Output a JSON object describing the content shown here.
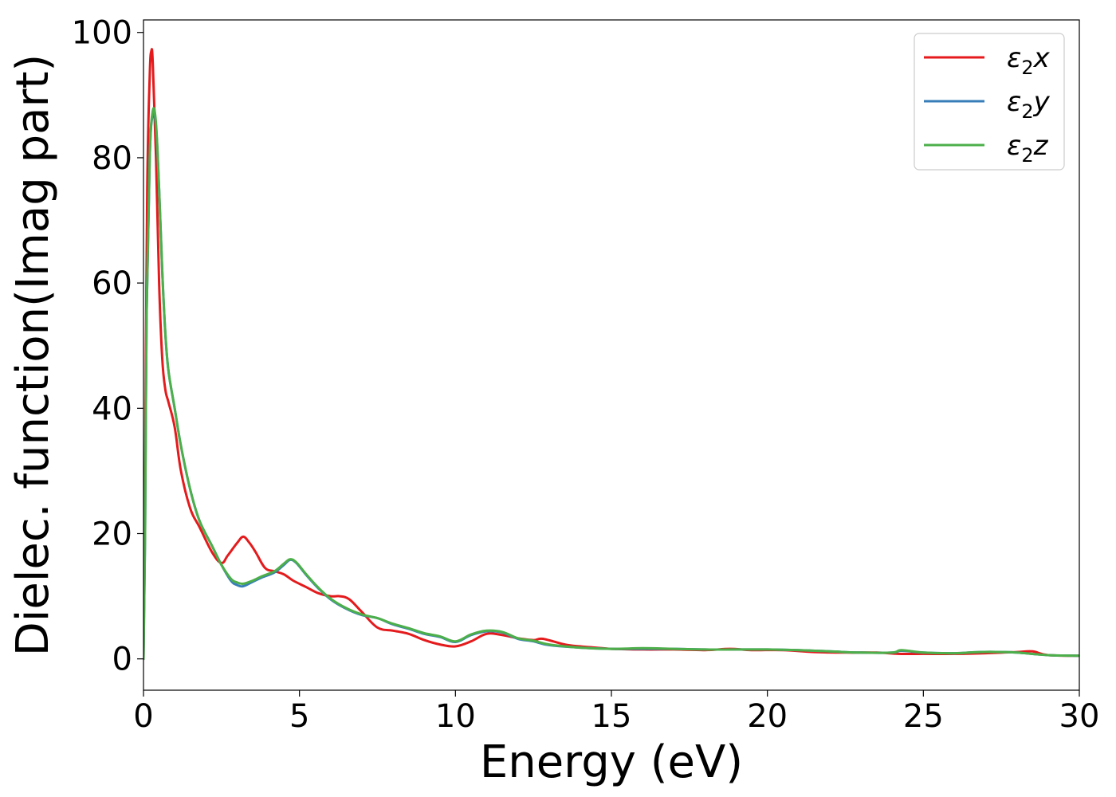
{
  "chart_data": {
    "type": "line",
    "title": "",
    "xlabel": "Energy (eV)",
    "ylabel": "Dielec. function(Imag part)",
    "xlim": [
      0,
      30
    ],
    "ylim": [
      -5,
      102
    ],
    "xticks": [
      0,
      5,
      10,
      15,
      20,
      25,
      30
    ],
    "yticks": [
      0,
      20,
      40,
      60,
      80,
      100
    ],
    "grid": false,
    "legend_position": "top-right",
    "series": [
      {
        "name": "ε2x",
        "legend": {
          "base": "ε",
          "sub": "2",
          "suffix": "x"
        },
        "color": "#e41a1c",
        "x": [
          0,
          0.05,
          0.12,
          0.2,
          0.25,
          0.3,
          0.4,
          0.5,
          0.6,
          0.7,
          0.8,
          1.0,
          1.2,
          1.5,
          1.8,
          2.2,
          2.5,
          2.7,
          3.0,
          3.2,
          3.4,
          3.6,
          3.9,
          4.2,
          4.5,
          4.8,
          5.2,
          5.6,
          6.0,
          6.3,
          6.6,
          7.0,
          7.5,
          8.0,
          8.5,
          9.0,
          9.5,
          10.0,
          10.5,
          11.0,
          11.5,
          12.0,
          12.5,
          12.8,
          13.5,
          14.0,
          14.5,
          15.0,
          16.0,
          17.0,
          18.0,
          18.8,
          19.5,
          20.5,
          21.5,
          22.5,
          23.5,
          24.2,
          25.0,
          26.0,
          27.0,
          28.0,
          28.5,
          29.0,
          30.0
        ],
        "values": [
          0,
          30,
          75,
          93,
          97,
          95,
          80,
          60,
          48,
          43,
          41,
          37,
          30,
          24,
          21,
          17,
          15.3,
          16.5,
          18.5,
          19.5,
          18.5,
          17,
          14.5,
          14,
          13.5,
          12.5,
          11.5,
          10.5,
          10,
          10,
          9.5,
          7.5,
          5,
          4.5,
          4,
          3,
          2.3,
          2,
          2.8,
          4,
          3.8,
          3.3,
          3,
          3.2,
          2.3,
          2,
          1.8,
          1.6,
          1.5,
          1.5,
          1.4,
          1.6,
          1.4,
          1.4,
          1.1,
          1,
          1,
          0.8,
          0.8,
          0.8,
          0.9,
          1.1,
          1.2,
          0.6,
          0.5
        ]
      },
      {
        "name": "ε2y",
        "legend": {
          "base": "ε",
          "sub": "2",
          "suffix": "y"
        },
        "color": "#377eb8",
        "x": [
          0,
          0.05,
          0.1,
          0.2,
          0.3,
          0.4,
          0.5,
          0.6,
          0.7,
          0.8,
          1.0,
          1.2,
          1.5,
          1.8,
          2.2,
          2.5,
          2.8,
          3.0,
          3.2,
          3.5,
          3.8,
          4.2,
          4.5,
          4.7,
          4.9,
          5.2,
          5.6,
          6.0,
          6.5,
          7.0,
          7.5,
          8.0,
          8.5,
          9.0,
          9.5,
          10.0,
          10.5,
          11.0,
          11.5,
          12.0,
          12.5,
          13.0,
          14.0,
          15.0,
          16.0,
          17.0,
          18.0,
          19.0,
          20.0,
          21.0,
          22.0,
          23.0,
          24.0,
          24.3,
          25.0,
          26.0,
          26.8,
          27.5,
          28.0,
          29.0,
          30.0
        ],
        "values": [
          0,
          20,
          55,
          80,
          87,
          85,
          75,
          62,
          52,
          46,
          40,
          34,
          27,
          22,
          18,
          15,
          12.5,
          11.8,
          11.6,
          12.3,
          13,
          13.8,
          15,
          15.8,
          15.3,
          13.5,
          11.3,
          9.5,
          8,
          7,
          6.5,
          5.5,
          4.8,
          4,
          3.5,
          2.7,
          3.8,
          4.4,
          4.2,
          3.2,
          2.8,
          2.2,
          1.8,
          1.6,
          1.6,
          1.6,
          1.5,
          1.5,
          1.5,
          1.4,
          1.2,
          1,
          1,
          1.3,
          1,
          0.9,
          1.1,
          1.1,
          1,
          0.6,
          0.5
        ]
      },
      {
        "name": "ε2z",
        "legend": {
          "base": "ε",
          "sub": "2",
          "suffix": "z"
        },
        "color": "#4daf4a",
        "x": [
          0,
          0.05,
          0.1,
          0.2,
          0.3,
          0.4,
          0.5,
          0.6,
          0.7,
          0.8,
          1.0,
          1.2,
          1.5,
          1.8,
          2.2,
          2.5,
          2.8,
          3.0,
          3.2,
          3.5,
          3.8,
          4.2,
          4.5,
          4.7,
          4.9,
          5.2,
          5.6,
          6.0,
          6.5,
          7.0,
          7.5,
          8.0,
          8.5,
          9.0,
          9.5,
          10.0,
          10.5,
          11.0,
          11.5,
          12.0,
          12.5,
          13.0,
          14.0,
          15.0,
          16.0,
          17.0,
          18.0,
          19.0,
          20.0,
          21.0,
          22.0,
          23.0,
          24.0,
          24.3,
          25.0,
          26.0,
          26.8,
          27.5,
          28.0,
          29.0,
          30.0
        ],
        "values": [
          0,
          20,
          55,
          80,
          87.5,
          85.5,
          75,
          62,
          52,
          46,
          40,
          34,
          27,
          22,
          18,
          15,
          12.8,
          12.2,
          12,
          12.5,
          13.2,
          14,
          15.2,
          15.9,
          15.4,
          13.6,
          11.4,
          9.6,
          8.1,
          7.1,
          6.5,
          5.6,
          4.9,
          4.1,
          3.6,
          2.8,
          3.9,
          4.5,
          4.3,
          3.3,
          2.9,
          2.3,
          1.8,
          1.6,
          1.7,
          1.6,
          1.5,
          1.5,
          1.5,
          1.4,
          1.2,
          1,
          1,
          1.4,
          1,
          0.9,
          1.1,
          1.1,
          1,
          0.6,
          0.5
        ]
      }
    ]
  }
}
